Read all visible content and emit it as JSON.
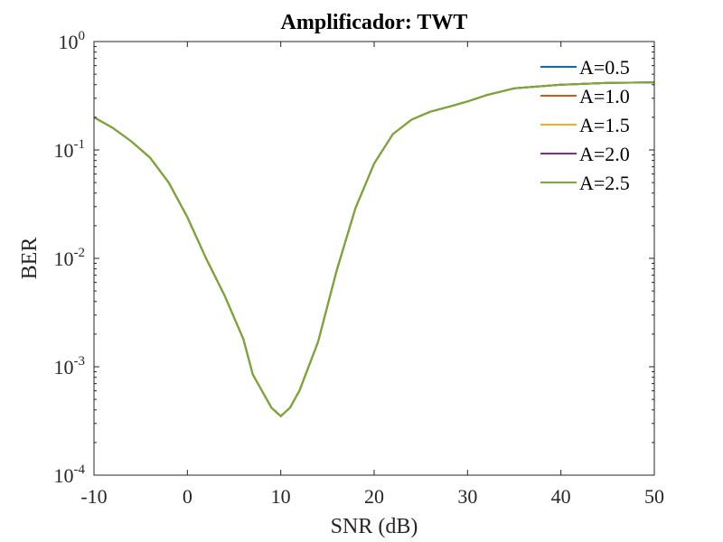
{
  "chart_data": {
    "type": "line",
    "title": "Amplificador: TWT",
    "xlabel": "SNR (dB)",
    "ylabel": "BER",
    "yscale": "log",
    "xlim": [
      -10,
      50
    ],
    "ylim": [
      0.0001,
      1
    ],
    "grid": false,
    "legend_position": "top-right",
    "x_ticks": [
      -10,
      0,
      10,
      20,
      30,
      40,
      50
    ],
    "x_tick_labels": [
      "-10",
      "0",
      "10",
      "20",
      "30",
      "40",
      "50"
    ],
    "y_ticks": [
      {
        "value": 0.0001,
        "base": "10",
        "exp": "-4"
      },
      {
        "value": 0.001,
        "base": "10",
        "exp": "-3"
      },
      {
        "value": 0.01,
        "base": "10",
        "exp": "-2"
      },
      {
        "value": 0.1,
        "base": "10",
        "exp": "-1"
      },
      {
        "value": 1,
        "base": "10",
        "exp": "0"
      }
    ],
    "x": [
      -10,
      -8,
      -6,
      -4,
      -2,
      0,
      2,
      4,
      6,
      7,
      9,
      10,
      11,
      12,
      14,
      16,
      18,
      20,
      22,
      24,
      26,
      28,
      30,
      32,
      35,
      40,
      45,
      50
    ],
    "series": [
      {
        "name": "A=0.5",
        "color": "#0072BD",
        "values": [
          0.2,
          0.16,
          0.12,
          0.085,
          0.05,
          0.024,
          0.01,
          0.0045,
          0.0018,
          0.00085,
          0.00042,
          0.00035,
          0.00042,
          0.0006,
          0.0017,
          0.0078,
          0.029,
          0.075,
          0.14,
          0.19,
          0.225,
          0.25,
          0.28,
          0.32,
          0.37,
          0.4,
          0.415,
          0.42
        ]
      },
      {
        "name": "A=1.0",
        "color": "#D95319",
        "values": [
          0.2,
          0.16,
          0.12,
          0.085,
          0.05,
          0.024,
          0.01,
          0.0045,
          0.0018,
          0.00085,
          0.00042,
          0.00035,
          0.00042,
          0.0006,
          0.0017,
          0.0078,
          0.029,
          0.075,
          0.14,
          0.19,
          0.225,
          0.25,
          0.28,
          0.32,
          0.37,
          0.4,
          0.415,
          0.42
        ]
      },
      {
        "name": "A=1.5",
        "color": "#EDB120",
        "values": [
          0.2,
          0.16,
          0.12,
          0.085,
          0.05,
          0.024,
          0.01,
          0.0045,
          0.0018,
          0.00085,
          0.00042,
          0.00035,
          0.00042,
          0.0006,
          0.0017,
          0.0078,
          0.029,
          0.075,
          0.14,
          0.19,
          0.225,
          0.25,
          0.28,
          0.32,
          0.37,
          0.4,
          0.415,
          0.42
        ]
      },
      {
        "name": "A=2.0",
        "color": "#7E2F8E",
        "values": [
          0.2,
          0.16,
          0.12,
          0.085,
          0.05,
          0.024,
          0.01,
          0.0045,
          0.0018,
          0.00085,
          0.00042,
          0.00035,
          0.00042,
          0.0006,
          0.0017,
          0.0078,
          0.029,
          0.075,
          0.14,
          0.19,
          0.225,
          0.25,
          0.28,
          0.32,
          0.37,
          0.4,
          0.415,
          0.42
        ]
      },
      {
        "name": "A=2.5",
        "color": "#77AC30",
        "values": [
          0.2,
          0.16,
          0.12,
          0.085,
          0.05,
          0.024,
          0.01,
          0.0045,
          0.0018,
          0.00085,
          0.00042,
          0.00035,
          0.00042,
          0.0006,
          0.0017,
          0.0078,
          0.029,
          0.075,
          0.14,
          0.19,
          0.225,
          0.25,
          0.28,
          0.32,
          0.37,
          0.4,
          0.415,
          0.42
        ]
      }
    ]
  }
}
